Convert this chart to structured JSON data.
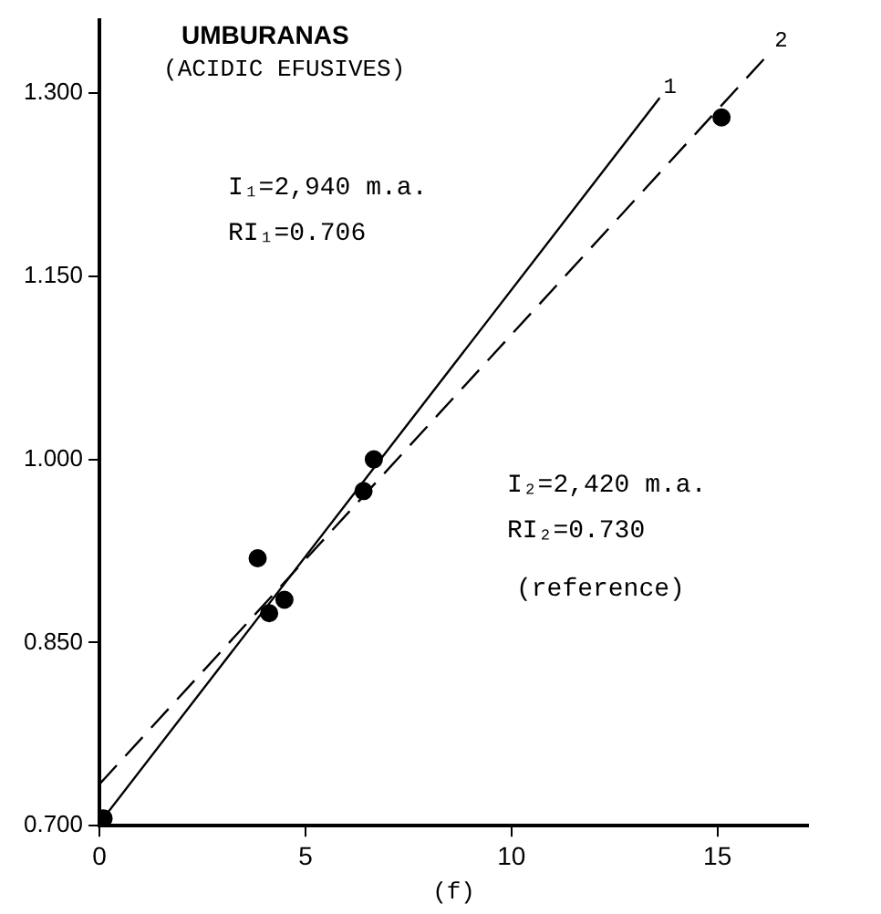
{
  "chart_data": {
    "type": "scatter",
    "title": "UMBURANAS",
    "subtitle": "(ACIDIC EFUSIVES)",
    "xlabel": "(f)",
    "xlim": [
      0,
      17.2
    ],
    "xticks": [
      0,
      5,
      10,
      15
    ],
    "ylim": [
      0.7,
      1.36
    ],
    "yticks": [
      {
        "value": 0.7,
        "label": "0.700"
      },
      {
        "value": 0.85,
        "label": "0.850"
      },
      {
        "value": 1.0,
        "label": "1.000"
      },
      {
        "value": 1.15,
        "label": "1.150"
      },
      {
        "value": 1.3,
        "label": "1.300"
      }
    ],
    "grid": false,
    "legend": false,
    "series": [
      {
        "type": "scatter",
        "color": "#000000",
        "marker": "circle",
        "x": [
          0.1,
          3.84,
          4.12,
          4.49,
          6.41,
          6.66,
          15.1
        ],
        "values": [
          0.706,
          0.919,
          0.874,
          0.885,
          0.974,
          1.0,
          1.28
        ]
      },
      {
        "type": "line",
        "color": "#000000",
        "marker": "none",
        "line_style": "solid",
        "x": [
          0,
          13.6
        ],
        "values": [
          0.702,
          1.296
        ]
      },
      {
        "type": "line",
        "color": "#000000",
        "marker": "none",
        "line_style": "dashed",
        "x": [
          0,
          16.3
        ],
        "values": [
          0.734,
          1.334
        ]
      }
    ],
    "annotations": [
      "I₁=2,940 m.a.",
      "RI₁=0.706",
      "I₂=2,420 m.a.",
      "RI₂=0.730",
      "(reference)",
      {
        "text": "1",
        "x": 13.6,
        "y": 1.296
      },
      {
        "text": "2",
        "x": 16.3,
        "y": 1.334
      }
    ]
  }
}
